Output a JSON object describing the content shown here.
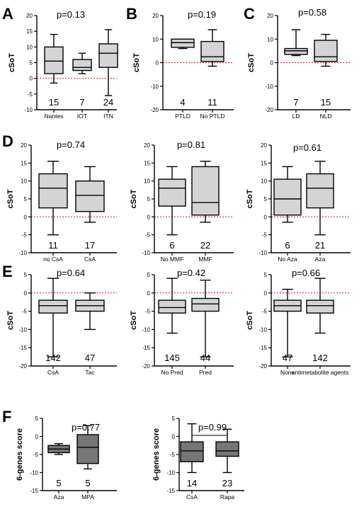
{
  "colors": {
    "box_light": "#d4d4d4",
    "box_dark": "#767676",
    "zero_line": "#e01010"
  },
  "chart_data": [
    {
      "id": "A",
      "letter": "A",
      "type": "boxplot",
      "ylabel": "cSoT",
      "pvalue": "p=0.13",
      "ylim": [
        -10,
        20
      ],
      "yticks": [
        -10,
        -5,
        0,
        5,
        10,
        15,
        20
      ],
      "zero_line": true,
      "fill": "box_light",
      "categories": [
        "Nantes",
        "IOT",
        "ITN"
      ],
      "n": [
        "15",
        "7",
        "24"
      ],
      "boxes": [
        {
          "min": -1.5,
          "q1": 1.5,
          "median": 5.5,
          "q3": 10,
          "max": 14
        },
        {
          "min": 1.5,
          "q1": 2.5,
          "median": 3.5,
          "q3": 6,
          "max": 8
        },
        {
          "min": -5.5,
          "q1": 3.5,
          "median": 8,
          "q3": 11,
          "max": 15.5
        }
      ]
    },
    {
      "id": "B",
      "letter": "B",
      "type": "boxplot",
      "ylabel": "cSoT",
      "pvalue": "p=0.19",
      "ylim": [
        -20,
        20
      ],
      "yticks": [
        -20,
        -10,
        0,
        10,
        20
      ],
      "zero_line": true,
      "fill": "box_light",
      "categories": [
        "PTLD",
        "No PTLD"
      ],
      "n": [
        "4",
        "11"
      ],
      "boxes": [
        {
          "min": 6,
          "q1": 6.5,
          "median": 8.5,
          "q3": 10,
          "max": 10
        },
        {
          "min": -1.5,
          "q1": 0.5,
          "median": 2.5,
          "q3": 9,
          "max": 14
        }
      ]
    },
    {
      "id": "C",
      "letter": "C",
      "type": "boxplot",
      "ylabel": "cSoT",
      "pvalue": "p=0.58",
      "ylim": [
        -20,
        20
      ],
      "yticks": [
        -20,
        -10,
        0,
        10,
        20
      ],
      "zero_line": true,
      "fill": "box_light",
      "categories": [
        "LD",
        "NLD"
      ],
      "n": [
        "7",
        "15"
      ],
      "boxes": [
        {
          "min": 3,
          "q1": 3.5,
          "median": 5,
          "q3": 6,
          "max": 14
        },
        {
          "min": -1.5,
          "q1": 0.5,
          "median": 2.5,
          "q3": 9.5,
          "max": 12
        }
      ]
    },
    {
      "id": "D1",
      "letter": "D",
      "type": "boxplot",
      "ylabel": "cSoT",
      "pvalue": "p=0.74",
      "ylim": [
        -10,
        20
      ],
      "yticks": [
        -10,
        -5,
        0,
        5,
        10,
        15,
        20
      ],
      "zero_line": true,
      "fill": "box_light",
      "categories": [
        "no CsA",
        "CsA"
      ],
      "n": [
        "11",
        "17"
      ],
      "boxes": [
        {
          "min": -5,
          "q1": 2.5,
          "median": 8,
          "q3": 12,
          "max": 15.5
        },
        {
          "min": -1.5,
          "q1": 1.5,
          "median": 6,
          "q3": 10,
          "max": 14
        }
      ]
    },
    {
      "id": "D2",
      "letter": "",
      "type": "boxplot",
      "ylabel": "cSoT",
      "pvalue": "p=0.81",
      "ylim": [
        -10,
        20
      ],
      "yticks": [
        -10,
        -5,
        0,
        5,
        10,
        15,
        20
      ],
      "zero_line": true,
      "fill": "box_light",
      "categories": [
        "No MMF",
        "MMF"
      ],
      "n": [
        "6",
        "22"
      ],
      "boxes": [
        {
          "min": -5,
          "q1": 3,
          "median": 8,
          "q3": 10.5,
          "max": 14
        },
        {
          "min": -1.5,
          "q1": 0.5,
          "median": 4,
          "q3": 14,
          "max": 15.5
        }
      ]
    },
    {
      "id": "D3",
      "letter": "",
      "type": "boxplot",
      "ylabel": "cSoT",
      "pvalue": "p=0.61",
      "ylim": [
        -10,
        20
      ],
      "yticks": [
        -10,
        -5,
        0,
        5,
        10,
        15,
        20
      ],
      "zero_line": true,
      "fill": "box_light",
      "categories": [
        "No Aza",
        "Aza"
      ],
      "n": [
        "6",
        "21"
      ],
      "boxes": [
        {
          "min": -1.5,
          "q1": 0.5,
          "median": 5,
          "q3": 10.5,
          "max": 14
        },
        {
          "min": -5,
          "q1": 2.5,
          "median": 8,
          "q3": 12,
          "max": 15.5
        }
      ]
    },
    {
      "id": "E1",
      "letter": "E",
      "type": "boxplot",
      "ylabel": "cSoT",
      "pvalue": "p=0.64",
      "ylim": [
        -20,
        5
      ],
      "yticks": [
        -20,
        -15,
        -10,
        -5,
        0,
        5
      ],
      "zero_line": true,
      "fill": "box_light",
      "categories": [
        "CsA",
        "Tac"
      ],
      "n": [
        "142",
        "47"
      ],
      "boxes": [
        {
          "min": -17.5,
          "q1": -5.5,
          "median": -3.5,
          "q3": -2,
          "max": 4
        },
        {
          "min": -10,
          "q1": -5,
          "median": -3.5,
          "q3": -2,
          "max": 0
        }
      ]
    },
    {
      "id": "E2",
      "letter": "",
      "type": "boxplot",
      "ylabel": "cSoT",
      "pvalue": "p=0.42",
      "ylim": [
        -20,
        5
      ],
      "yticks": [
        -20,
        -15,
        -10,
        -5,
        0,
        5
      ],
      "zero_line": true,
      "fill": "box_light",
      "categories": [
        "No Pred",
        "Pred"
      ],
      "n": [
        "145",
        "44"
      ],
      "boxes": [
        {
          "min": -11,
          "q1": -5.5,
          "median": -4,
          "q3": -2,
          "max": 4
        },
        {
          "min": -17.5,
          "q1": -5,
          "median": -3,
          "q3": -1.5,
          "max": 3.5
        }
      ]
    },
    {
      "id": "E3",
      "letter": "",
      "type": "boxplot",
      "ylabel": "cSoT",
      "pvalue": "p=0.66",
      "ylim": [
        -20,
        5
      ],
      "yticks": [
        -20,
        -15,
        -10,
        -5,
        0,
        5
      ],
      "zero_line": true,
      "fill": "box_light",
      "categories": [
        "None",
        "antimetabolite agents"
      ],
      "n": [
        "47",
        "142"
      ],
      "boxes": [
        {
          "min": -17.5,
          "q1": -5,
          "median": -3.5,
          "q3": -2,
          "max": 1
        },
        {
          "min": -11,
          "q1": -5.5,
          "median": -3.5,
          "q3": -2,
          "max": 4
        }
      ]
    },
    {
      "id": "F1",
      "letter": "F",
      "type": "boxplot",
      "ylabel": "6-genes score",
      "pvalue": "p=0.77",
      "ylim": [
        -15,
        5
      ],
      "yticks": [
        -15,
        -10,
        -5,
        0,
        5
      ],
      "zero_line": false,
      "fill": "box_dark",
      "categories": [
        "Aza",
        "MPA"
      ],
      "n": [
        "5",
        "5"
      ],
      "boxes": [
        {
          "min": -5,
          "q1": -4.5,
          "median": -3.5,
          "q3": -2.5,
          "max": -2
        },
        {
          "min": -9,
          "q1": -7.5,
          "median": -3,
          "q3": 0.5,
          "max": 3
        }
      ]
    },
    {
      "id": "F2",
      "letter": "",
      "type": "boxplot",
      "ylabel": "6-genes score",
      "pvalue": "p=0.99",
      "ylim": [
        -15,
        5
      ],
      "yticks": [
        -15,
        -10,
        -5,
        0,
        5
      ],
      "zero_line": false,
      "fill": "box_dark",
      "bracket": true,
      "categories": [
        "CsA",
        "Rapa"
      ],
      "n": [
        "14",
        "23"
      ],
      "boxes": [
        {
          "min": -10,
          "q1": -7,
          "median": -4,
          "q3": -1.5,
          "max": 3.5
        },
        {
          "min": -10,
          "q1": -5.5,
          "median": -4,
          "q3": -1.5,
          "max": 2
        }
      ]
    }
  ]
}
